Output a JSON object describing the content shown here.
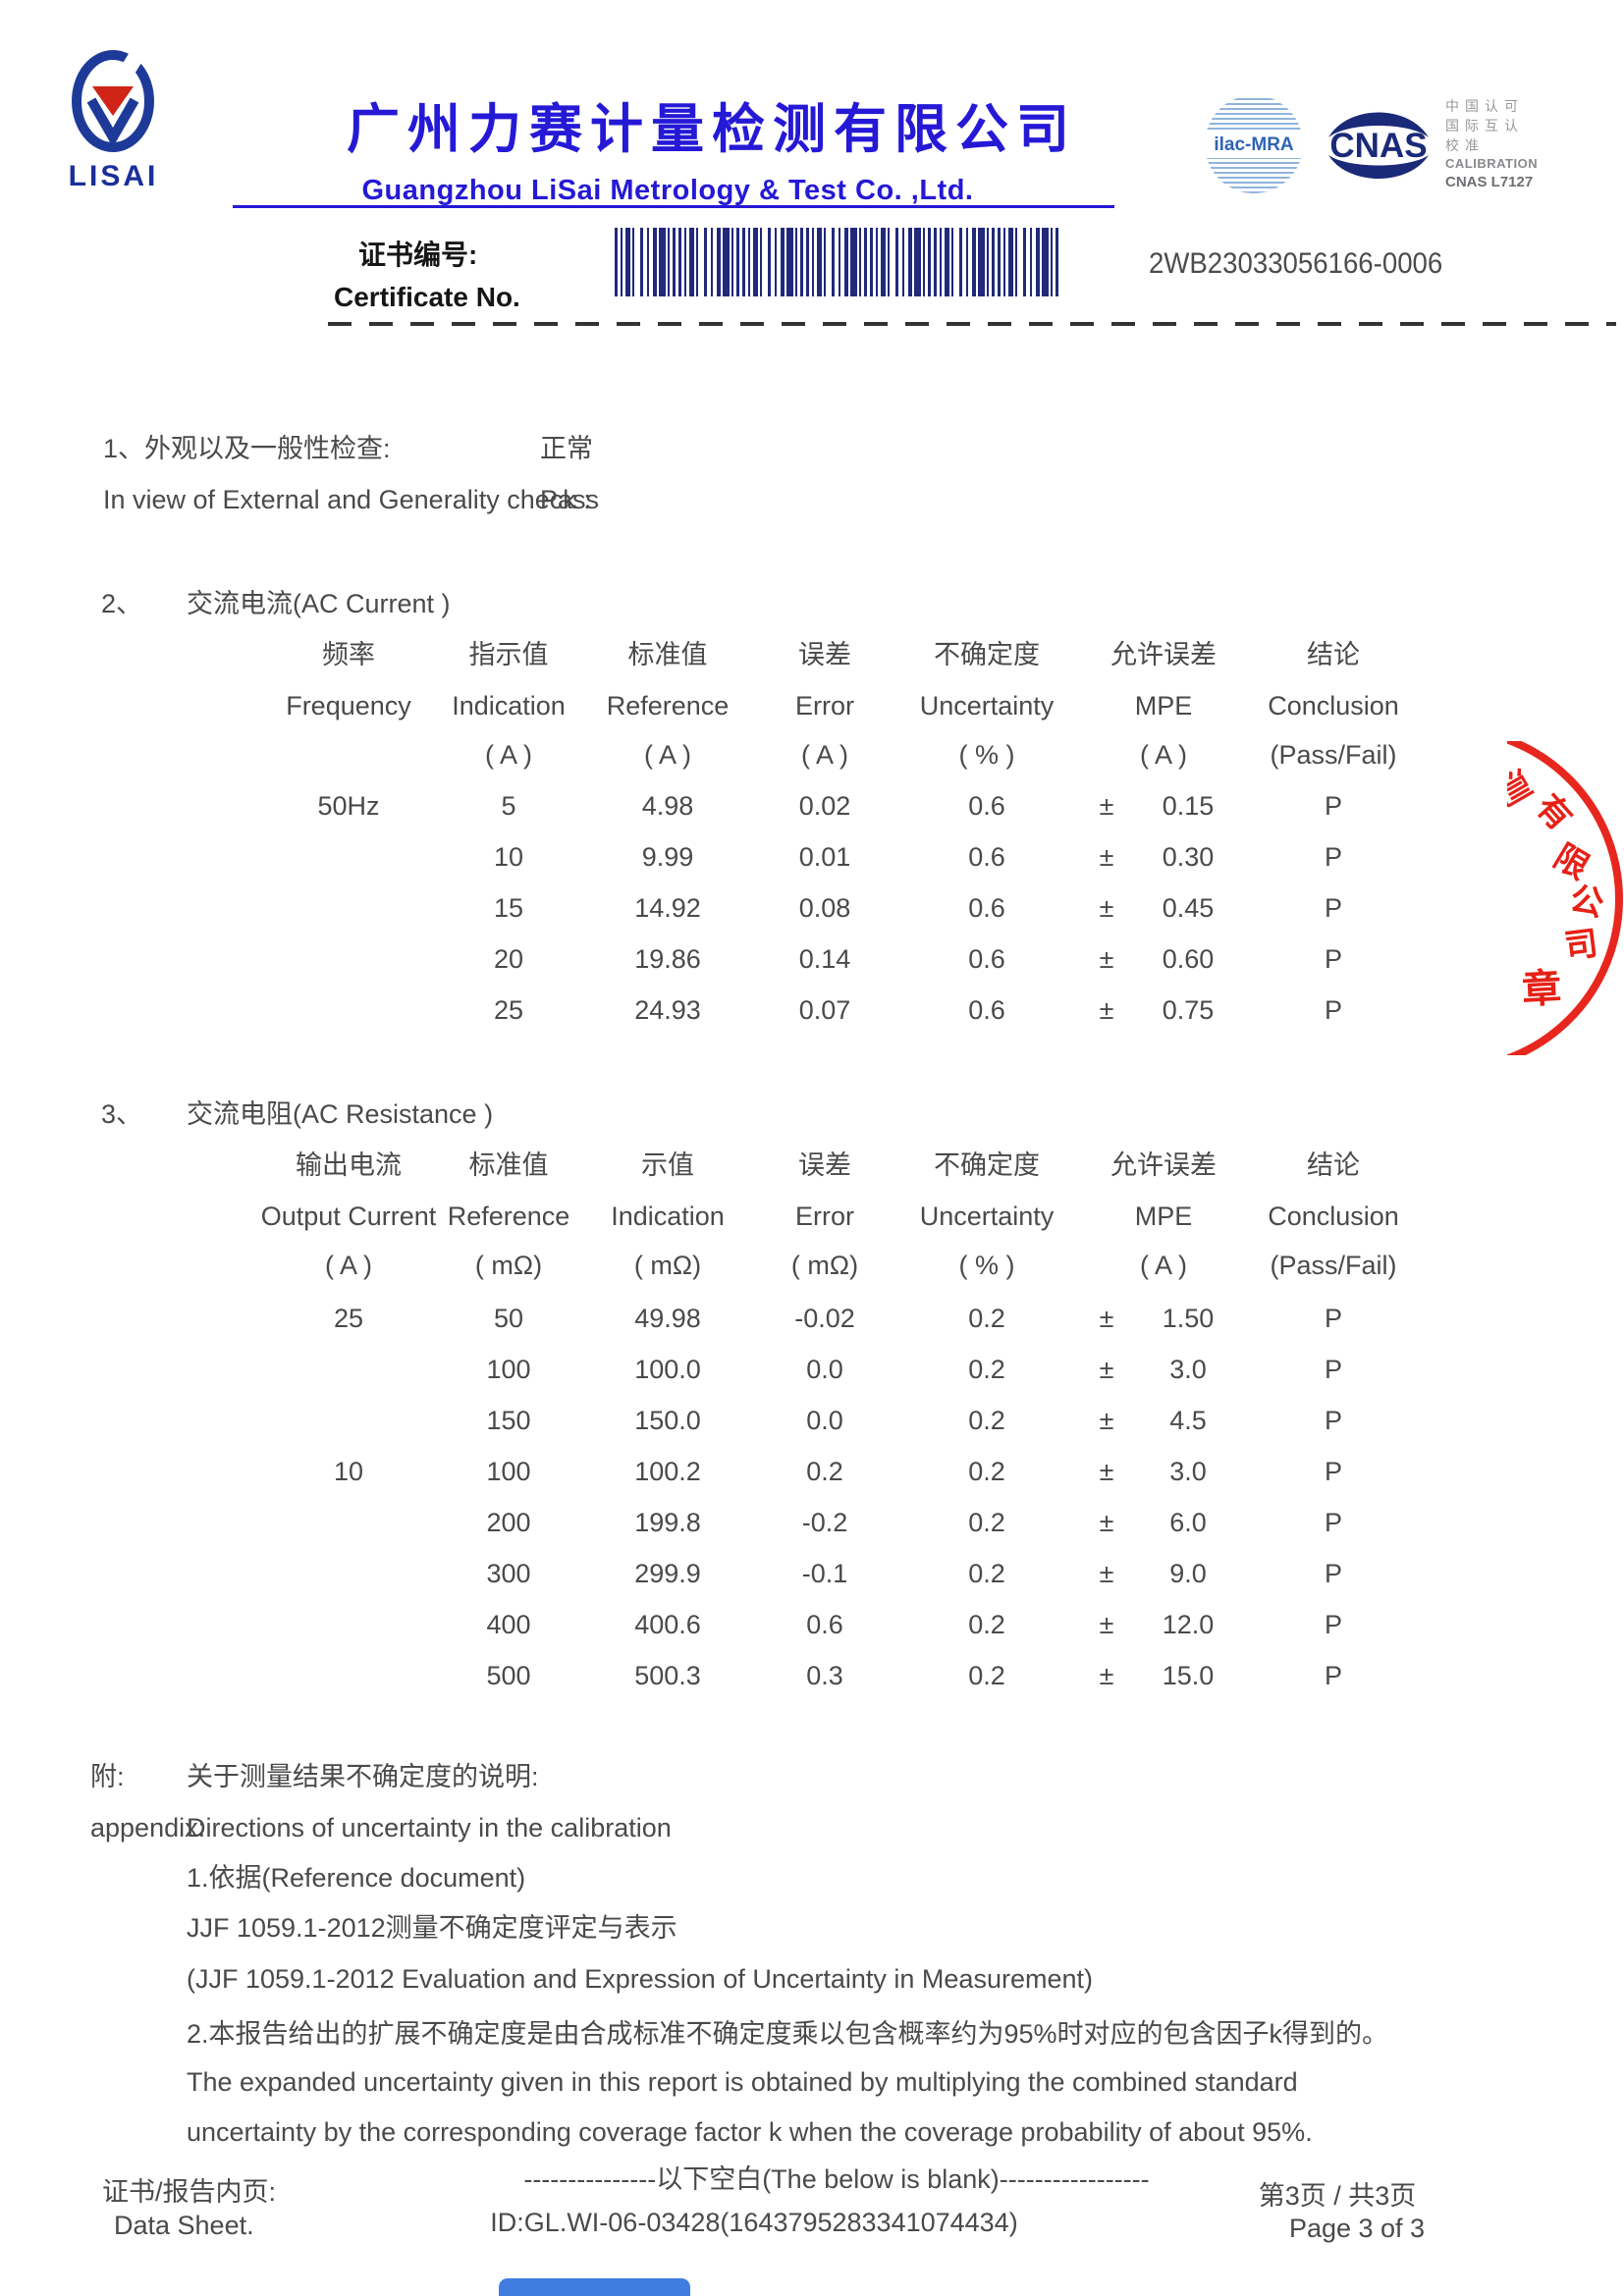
{
  "header": {
    "logo_text": "LISAI",
    "company_name_zh": "广州力赛计量检测有限公司",
    "company_name_en": "Guangzhou LiSai Metrology & Test Co. ,Ltd.",
    "accreditation": {
      "ilac_label": "ilac-MRA",
      "cnas_label": "CNAS",
      "lines_zh": [
        "中国认可",
        "国际互认",
        "校准"
      ],
      "line_en": "CALIBRATION",
      "cnas_code": "CNAS L7127"
    },
    "certificate_label_zh": "证书编号:",
    "certificate_label_en": "Certificate No.",
    "certificate_no": "2WB23033056166-0006"
  },
  "section1": {
    "line_zh": "1、外观以及一般性检查:",
    "line_en": "In view of External and Generality check :",
    "result_zh": "正常",
    "result_en": "Pass"
  },
  "ac_current": {
    "num": "2、",
    "title": "交流电流(AC Current )",
    "headers_zh": [
      "频率",
      "指示值",
      "标准值",
      "误差",
      "不确定度",
      "允许误差",
      "结论"
    ],
    "headers_en": [
      "Frequency",
      "Indication",
      "Reference",
      "Error",
      "Uncertainty",
      "MPE",
      "Conclusion"
    ],
    "units": [
      "",
      "( A )",
      "( A )",
      "( A )",
      "( % )",
      "( A )",
      "(Pass/Fail)"
    ],
    "mpe_sign": "±",
    "rows": [
      [
        "50Hz",
        "5",
        "4.98",
        "0.02",
        "0.6",
        "0.15",
        "P"
      ],
      [
        "",
        "10",
        "9.99",
        "0.01",
        "0.6",
        "0.30",
        "P"
      ],
      [
        "",
        "15",
        "14.92",
        "0.08",
        "0.6",
        "0.45",
        "P"
      ],
      [
        "",
        "20",
        "19.86",
        "0.14",
        "0.6",
        "0.60",
        "P"
      ],
      [
        "",
        "25",
        "24.93",
        "0.07",
        "0.6",
        "0.75",
        "P"
      ]
    ]
  },
  "ac_resistance": {
    "num": "3、",
    "title": "交流电阻(AC Resistance )",
    "headers_zh": [
      "输出电流",
      "标准值",
      "示值",
      "误差",
      "不确定度",
      "允许误差",
      "结论"
    ],
    "headers_en": [
      "Output Current",
      "Reference",
      "Indication",
      "Error",
      "Uncertainty",
      "MPE",
      "Conclusion"
    ],
    "units": [
      "( A )",
      "( mΩ)",
      "( mΩ)",
      "( mΩ)",
      "( % )",
      "( A )",
      "(Pass/Fail)"
    ],
    "mpe_sign": "±",
    "rows": [
      [
        "25",
        "50",
        "49.98",
        "-0.02",
        "0.2",
        "1.50",
        "P"
      ],
      [
        "",
        "100",
        "100.0",
        "0.0",
        "0.2",
        "3.0",
        "P"
      ],
      [
        "",
        "150",
        "150.0",
        "0.0",
        "0.2",
        "4.5",
        "P"
      ],
      [
        "10",
        "100",
        "100.2",
        "0.2",
        "0.2",
        "3.0",
        "P"
      ],
      [
        "",
        "200",
        "199.8",
        "-0.2",
        "0.2",
        "6.0",
        "P"
      ],
      [
        "",
        "300",
        "299.9",
        "-0.1",
        "0.2",
        "9.0",
        "P"
      ],
      [
        "",
        "400",
        "400.6",
        "0.6",
        "0.2",
        "12.0",
        "P"
      ],
      [
        "",
        "500",
        "500.3",
        "0.3",
        "0.2",
        "15.0",
        "P"
      ]
    ]
  },
  "appendix": {
    "label_zh": "附:",
    "label_en": "appendix:",
    "title_zh": "关于测量结果不确定度的说明:",
    "title_en": "Directions of uncertainty in the calibration",
    "lines": [
      "1.依据(Reference document)",
      "JJF 1059.1-2012测量不确定度评定与表示",
      "(JJF 1059.1-2012 Evaluation and Expression of Uncertainty in Measurement)",
      "2.本报告给出的扩展不确定度是由合成标准不确定度乘以包含概率约为95%时对应的包含因子k得到的。",
      "The expanded uncertainty given in this report is obtained by multiplying the combined standard",
      "uncertainty by the corresponding coverage factor k when the coverage probability of about 95%."
    ]
  },
  "footer": {
    "blank_note": "---------------以下空白(The below is blank)-----------------",
    "doc_id": "ID:GL.WI-06-03428(1643795283341074434)",
    "left_zh": "证书/报告内页:",
    "left_en": "Data Sheet.",
    "page_zh": "第3页 / 共3页",
    "page_en": "Page 3 of 3"
  },
  "stamp": {
    "arc_chars": [
      "测",
      "有",
      "限",
      "公",
      "司"
    ],
    "bottom_char": "章"
  },
  "colors": {
    "brand_blue": "#2519d6",
    "barcode_navy": "#20297a",
    "stamp_red": "#e5150b"
  }
}
